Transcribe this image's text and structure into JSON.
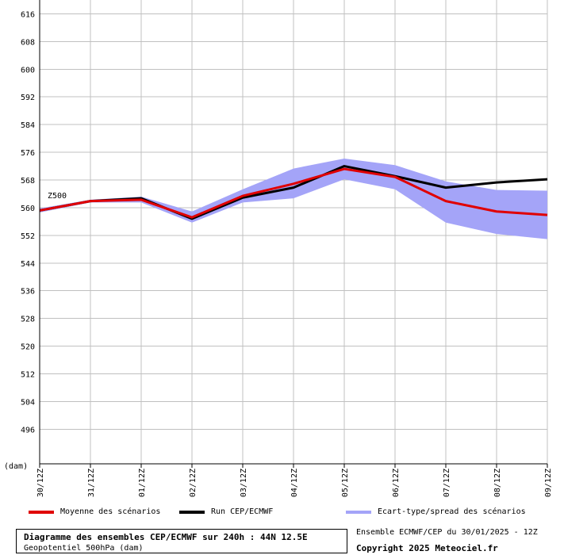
{
  "chart_data": {
    "type": "line",
    "unit_label": "(dam)",
    "series_label": "Z500",
    "yticks": [
      496,
      504,
      512,
      520,
      528,
      536,
      544,
      552,
      560,
      568,
      576,
      584,
      592,
      600,
      608,
      616
    ],
    "ylim": [
      486,
      620
    ],
    "x": [
      "30/12Z",
      "31/12Z",
      "01/12Z",
      "02/12Z",
      "03/12Z",
      "04/12Z",
      "05/12Z",
      "06/12Z",
      "07/12Z",
      "08/12Z",
      "09/12Z"
    ],
    "series": [
      {
        "name": "Moyenne des scénarios",
        "color": "#e00000",
        "values": [
          559.2,
          561.9,
          562.3,
          557.2,
          563.4,
          566.9,
          571.2,
          568.9,
          561.9,
          558.9,
          557.9
        ]
      },
      {
        "name": "Run CEP/ECMWF",
        "color": "#000000",
        "values": [
          559.2,
          561.9,
          562.7,
          556.8,
          562.9,
          565.8,
          572.0,
          569.1,
          565.8,
          567.3,
          568.2
        ]
      }
    ],
    "spread": {
      "name": "Ecart-type/spread des scénarios",
      "color": "#a4a4f8",
      "upper": [
        559.8,
        562.3,
        563.2,
        558.9,
        565.3,
        571.3,
        574.2,
        572.3,
        567.6,
        565.1,
        564.9
      ],
      "lower": [
        558.6,
        561.5,
        561.5,
        555.7,
        561.5,
        562.7,
        568.2,
        565.3,
        555.7,
        552.4,
        550.9
      ]
    },
    "grid": true,
    "legend_position": "bottom"
  },
  "legend": {
    "mean_label": "Moyenne des scénarios",
    "run_label": "Run CEP/ECMWF",
    "spread_label": "Ecart-type/spread des scénarios"
  },
  "info": {
    "title": "Diagramme des ensembles CEP/ECMWF sur 240h : 44N 12.5E",
    "subtitle": "Geopotentiel 500hPa (dam)",
    "ensemble": "Ensemble ECMWF/CEP du 30/01/2025 - 12Z",
    "copyright": "Copyright 2025 Meteociel.fr"
  }
}
